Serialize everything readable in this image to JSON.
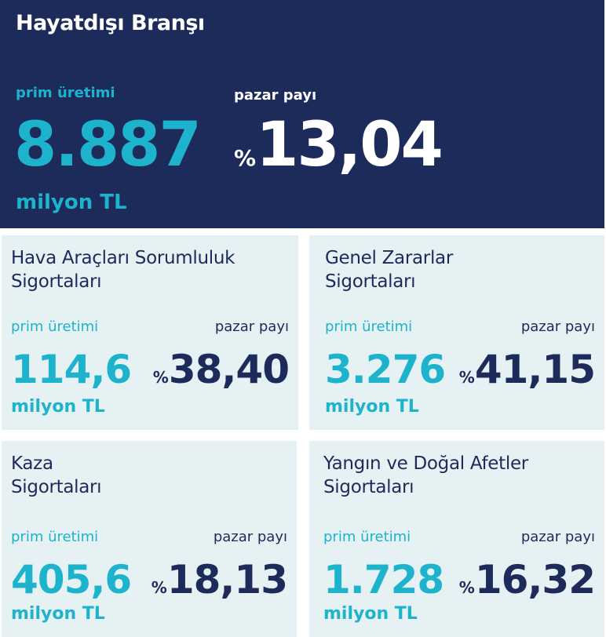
{
  "hero": {
    "title": "Hayatdışı Branşı",
    "prim_label": "prim üretimi",
    "prim_value": "8.887",
    "prim_unit": "milyon TL",
    "pazar_label": "pazar payı",
    "pazar_prefix": "%",
    "pazar_value": "13,04"
  },
  "cards": [
    {
      "title_line1": "Hava Araçları Sorumluluk",
      "title_line2": "Sigortaları",
      "prim_label": "prim üretimi",
      "prim_value": "114,6",
      "prim_unit": "milyon TL",
      "pazar_label": "pazar payı",
      "pazar_prefix": "%",
      "pazar_value": "38,40"
    },
    {
      "title_line1": "Genel Zararlar",
      "title_line2": "Sigortaları",
      "prim_label": "prim üretimi",
      "prim_value": "3.276",
      "prim_unit": "milyon TL",
      "pazar_label": "pazar payı",
      "pazar_prefix": "%",
      "pazar_value": "41,15"
    },
    {
      "title_line1": "Kaza",
      "title_line2": "Sigortaları",
      "prim_label": "prim üretimi",
      "prim_value": "405,6",
      "prim_unit": "milyon TL",
      "pazar_label": "pazar payı",
      "pazar_prefix": "%",
      "pazar_value": "18,13"
    },
    {
      "title_line1": "Yangın ve Doğal Afetler",
      "title_line2": "Sigortaları",
      "prim_label": "prim üretimi",
      "prim_value": "1.728",
      "prim_unit": "milyon TL",
      "pazar_label": "pazar payı",
      "pazar_prefix": "%",
      "pazar_value": "16,32"
    }
  ],
  "colors": {
    "navy": "#1d2b5a",
    "teal": "#1eb3cc",
    "card_background": "#e5f1f3"
  }
}
